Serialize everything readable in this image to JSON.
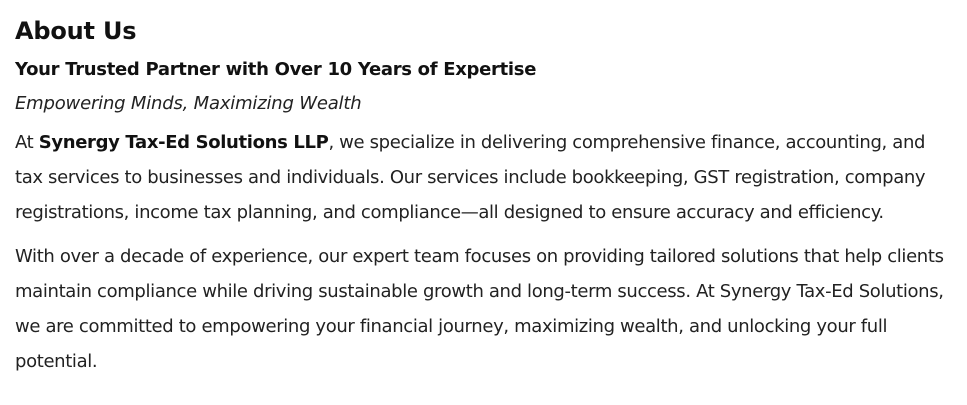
{
  "about": {
    "title": "About Us",
    "subtitle": "Your Trusted Partner with Over 10 Years of Expertise",
    "tagline": "Empowering Minds, Maximizing Wealth",
    "paragraph1": {
      "prefix": "At ",
      "company": "Synergy Tax-Ed Solutions LLP",
      "rest": ", we specialize in delivering comprehensive finance, accounting, and tax services to businesses and individuals. Our services include bookkeeping, GST registration, company registrations, income tax planning, and compliance—all designed to ensure accuracy and efficiency."
    },
    "paragraph2": "With over a decade of experience, our expert team focuses on providing tailored solutions that help clients maintain compliance while driving sustainable growth and long-term success. At Synergy Tax-Ed Solutions, we are committed to empowering your financial journey, maximizing wealth, and unlocking your full potential."
  }
}
